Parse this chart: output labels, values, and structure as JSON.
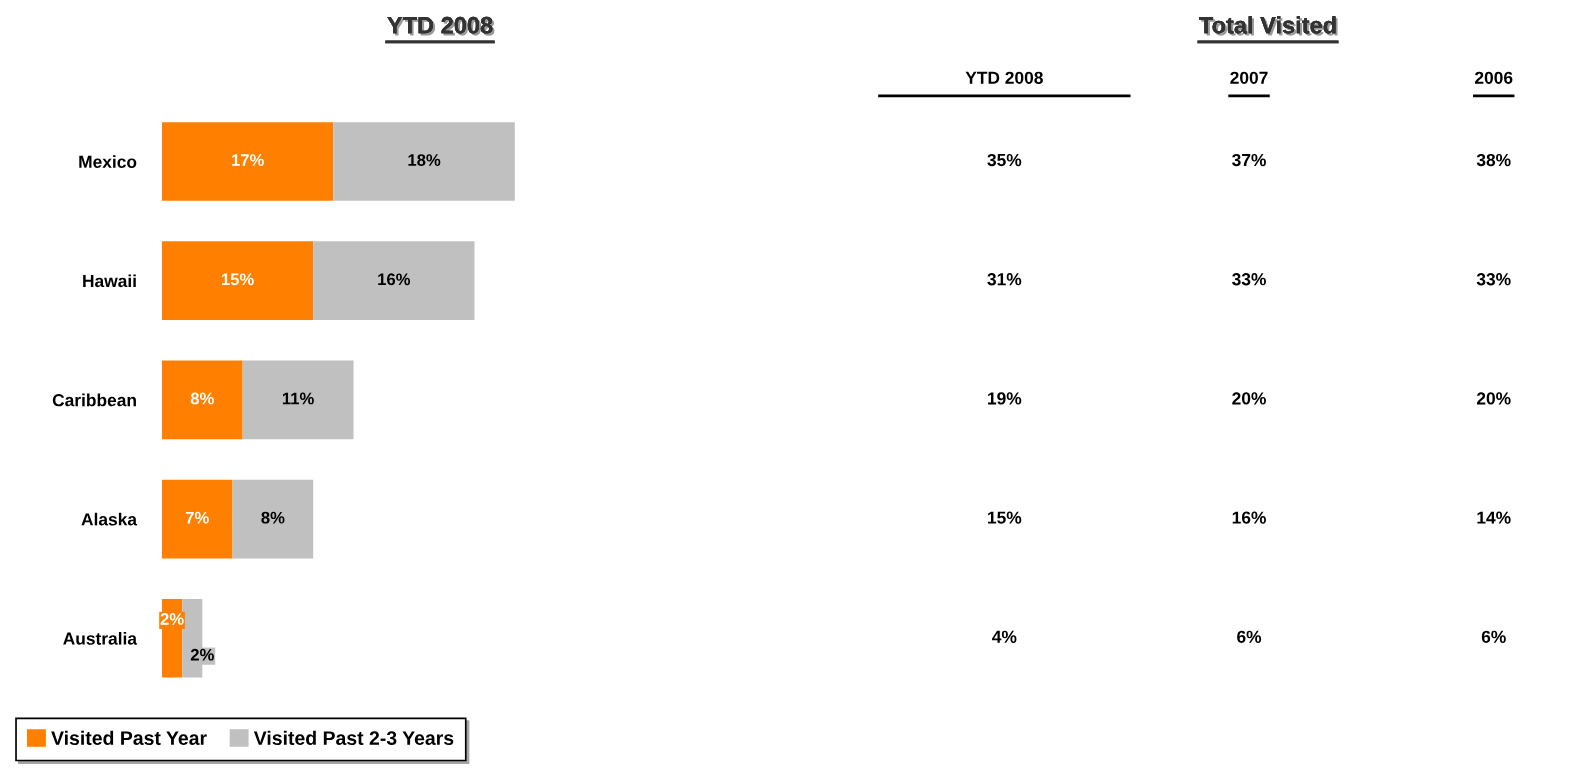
{
  "chart_data": [
    {
      "type": "bar",
      "title": "YTD 2008",
      "orientation": "horizontal",
      "stacked": true,
      "legend": "bottom left",
      "categories": [
        "Mexico",
        "Hawaii",
        "Caribbean",
        "Alaska",
        "Australia"
      ],
      "series": [
        {
          "name": "Visited Past Year",
          "color": "#ff8000",
          "values": [
            17,
            15,
            8,
            7,
            2
          ],
          "value_labels": [
            "17%",
            "15%",
            "8%",
            "7%",
            "2%"
          ]
        },
        {
          "name": "Visited Past 2-3 Years",
          "color": "#c0c0c0",
          "values": [
            18,
            16,
            11,
            8,
            2
          ],
          "value_labels": [
            "18%",
            "16%",
            "11%",
            "8%",
            "2%"
          ]
        }
      ]
    },
    {
      "type": "other",
      "title": "Total Visited",
      "categories": [
        "YTD 2008",
        "2007",
        "2006"
      ],
      "cell_labels": [
        [
          "35%",
          "37%",
          "38%"
        ],
        [
          "31%",
          "33%",
          "33%"
        ],
        [
          "19%",
          "20%",
          "20%"
        ],
        [
          "15%",
          "16%",
          "14%"
        ],
        [
          "4%",
          "6%",
          "6%"
        ]
      ]
    }
  ]
}
